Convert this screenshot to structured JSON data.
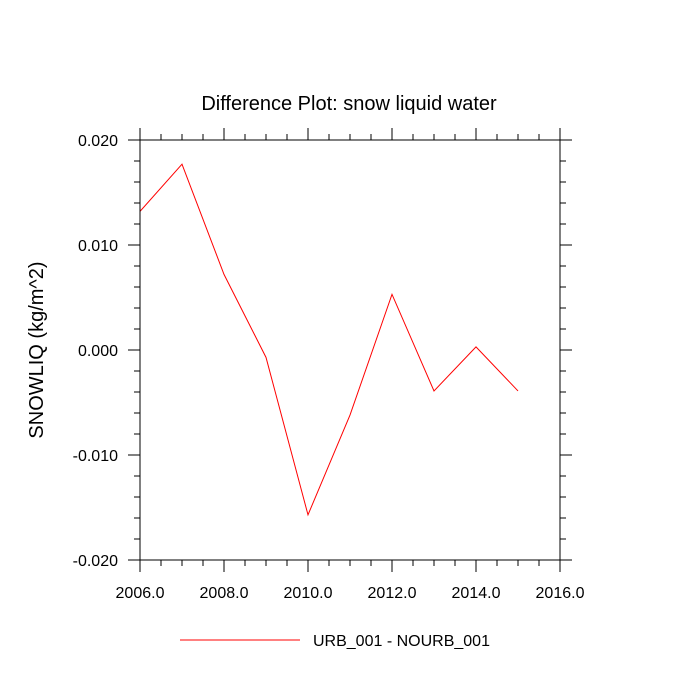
{
  "chart_data": {
    "type": "line",
    "title": "Difference Plot: snow liquid water",
    "xlabel": "",
    "ylabel": "SNOWLIQ  (kg/m^2)",
    "xlim": [
      2006.0,
      2016.0
    ],
    "ylim": [
      -0.02,
      0.02
    ],
    "x_ticks": [
      2006.0,
      2008.0,
      2010.0,
      2012.0,
      2014.0,
      2016.0
    ],
    "x_tick_labels": [
      "2006.0",
      "2008.0",
      "2010.0",
      "2012.0",
      "2014.0",
      "2016.0"
    ],
    "y_ticks": [
      0.02,
      0.01,
      0.0,
      -0.01,
      -0.02
    ],
    "y_tick_labels": [
      "0.020",
      "0.010",
      "0.000",
      "-0.010",
      "-0.020"
    ],
    "x": [
      2006,
      2007,
      2008,
      2009,
      2010,
      2011,
      2012,
      2013,
      2014,
      2015
    ],
    "series": [
      {
        "name": "URB_001 - NOURB_001",
        "color": "#ff0000",
        "values": [
          0.0132,
          0.0177,
          0.0072,
          -0.0007,
          -0.0157,
          -0.0062,
          0.0053,
          -0.0039,
          0.0003,
          -0.0039
        ]
      }
    ],
    "grid": false,
    "legend_position": "bottom-center"
  }
}
